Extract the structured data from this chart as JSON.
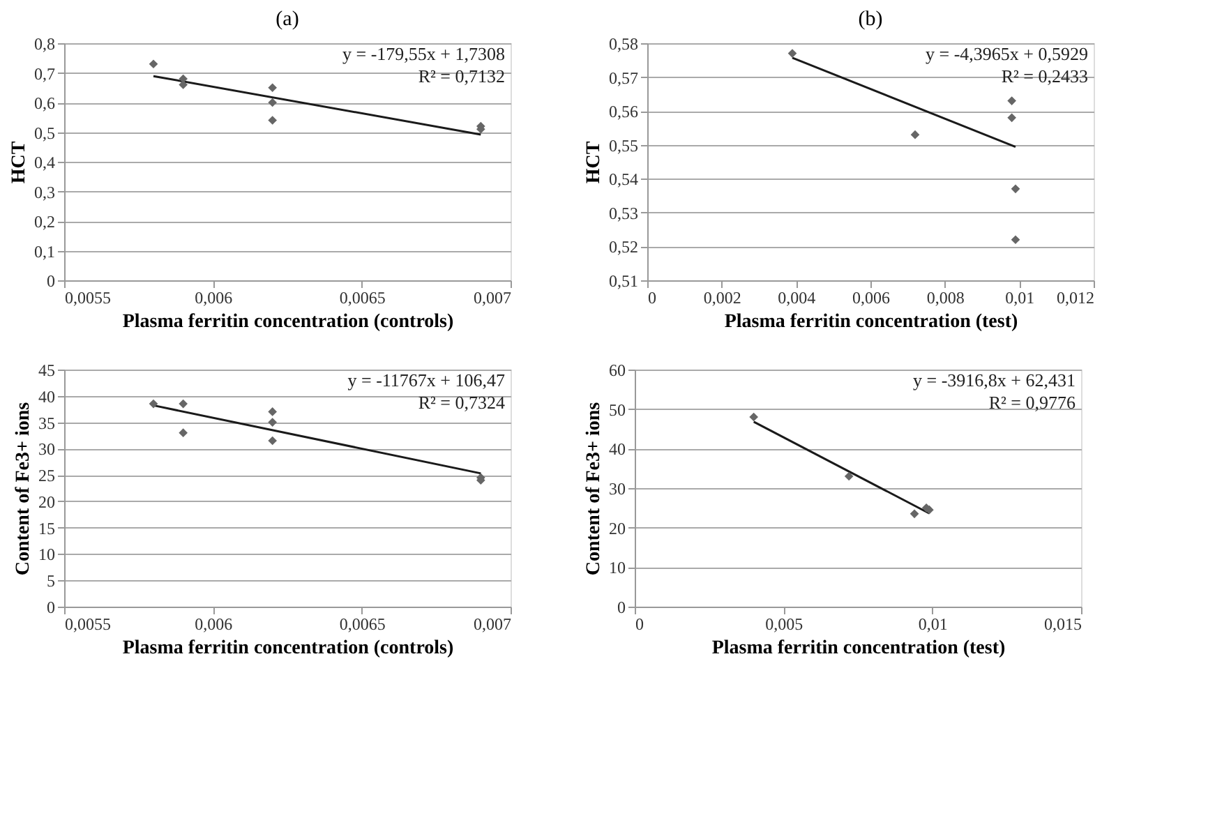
{
  "chart_data": [
    {
      "type": "scatter",
      "title": "(a)",
      "xlabel": "Plasma ferritin concentration (controls)",
      "ylabel": "HCT",
      "marker": "diamond",
      "grid": "y",
      "xlim": [
        0.0055,
        0.007
      ],
      "xticks": [
        {
          "value": 0.0055,
          "label": "0,0055"
        },
        {
          "value": 0.006,
          "label": "0,006"
        },
        {
          "value": 0.0065,
          "label": "0,0065"
        },
        {
          "value": 0.007,
          "label": "0,007"
        }
      ],
      "ylim": [
        0,
        0.8
      ],
      "yticks": [
        0,
        {
          "value": 0.1,
          "label": "0,1"
        },
        {
          "value": 0.2,
          "label": "0,2"
        },
        {
          "value": 0.3,
          "label": "0,3"
        },
        {
          "value": 0.4,
          "label": "0,4"
        },
        {
          "value": 0.5,
          "label": "0,5"
        },
        {
          "value": 0.6,
          "label": "0,6"
        },
        {
          "value": 0.7,
          "label": "0,7"
        },
        {
          "value": 0.8,
          "label": "0,8"
        }
      ],
      "annotations": [
        "y = -179,55x + 1,7308",
        "R² = 0,7132"
      ],
      "series": [
        {
          "color": "#666666",
          "x": [
            0.0058,
            0.0059,
            0.0059,
            0.0062,
            0.0062,
            0.0062,
            0.0069,
            0.0069
          ],
          "values": [
            0.73,
            0.68,
            0.66,
            0.65,
            0.6,
            0.54,
            0.52,
            0.51
          ]
        },
        {
          "type": "line",
          "marker": "none",
          "line_style": "solid",
          "color": "#1a1a1a",
          "x": [
            0.0058,
            0.0069
          ],
          "values": [
            0.689,
            0.492
          ]
        }
      ]
    },
    {
      "type": "scatter",
      "title": "(b)",
      "xlabel": "Plasma ferritin concentration (test)",
      "ylabel": "HCT",
      "marker": "diamond",
      "grid": "y",
      "xlim": [
        0,
        0.012
      ],
      "xticks": [
        0,
        {
          "value": 0.002,
          "label": "0,002"
        },
        {
          "value": 0.004,
          "label": "0,004"
        },
        {
          "value": 0.006,
          "label": "0,006"
        },
        {
          "value": 0.008,
          "label": "0,008"
        },
        {
          "value": 0.01,
          "label": "0,01"
        },
        {
          "value": 0.012,
          "label": "0,012"
        }
      ],
      "ylim": [
        0.51,
        0.58
      ],
      "yticks": [
        {
          "value": 0.51,
          "label": "0,51"
        },
        {
          "value": 0.52,
          "label": "0,52"
        },
        {
          "value": 0.53,
          "label": "0,53"
        },
        {
          "value": 0.54,
          "label": "0,54"
        },
        {
          "value": 0.55,
          "label": "0,55"
        },
        {
          "value": 0.56,
          "label": "0,56"
        },
        {
          "value": 0.57,
          "label": "0,57"
        },
        {
          "value": 0.58,
          "label": "0,58"
        }
      ],
      "annotations": [
        "y = -4,3965x + 0,5929",
        "R² = 0,2433"
      ],
      "series": [
        {
          "color": "#666666",
          "x": [
            0.0039,
            0.0072,
            0.0098,
            0.0098,
            0.0099,
            0.0099
          ],
          "values": [
            0.577,
            0.553,
            0.563,
            0.558,
            0.537,
            0.522
          ]
        },
        {
          "type": "line",
          "marker": "none",
          "line_style": "solid",
          "color": "#1a1a1a",
          "x": [
            0.0039,
            0.0099
          ],
          "values": [
            0.5757,
            0.5494
          ]
        }
      ]
    },
    {
      "type": "scatter",
      "xlabel": "Plasma ferritin concentration (controls)",
      "ylabel": "Content of Fe3+ ions",
      "marker": "diamond",
      "grid": "y",
      "xlim": [
        0.0055,
        0.007
      ],
      "xticks": [
        {
          "value": 0.0055,
          "label": "0,0055"
        },
        {
          "value": 0.006,
          "label": "0,006"
        },
        {
          "value": 0.0065,
          "label": "0,0065"
        },
        {
          "value": 0.007,
          "label": "0,007"
        }
      ],
      "ylim": [
        0,
        45
      ],
      "yticks": [
        0,
        5,
        10,
        15,
        20,
        25,
        30,
        35,
        40,
        45
      ],
      "annotations": [
        "y = -11767x + 106,47",
        "R² = 0,7324"
      ],
      "series": [
        {
          "color": "#666666",
          "x": [
            0.0058,
            0.0059,
            0.0059,
            0.0062,
            0.0062,
            0.0062,
            0.0069,
            0.0069
          ],
          "values": [
            38.5,
            38.5,
            33,
            37,
            35,
            31.5,
            24.5,
            24
          ]
        },
        {
          "type": "line",
          "marker": "none",
          "line_style": "solid",
          "color": "#1a1a1a",
          "x": [
            0.0058,
            0.0069
          ],
          "values": [
            38.2,
            25.3
          ]
        }
      ]
    },
    {
      "type": "scatter",
      "xlabel": "Plasma ferritin concentration (test)",
      "ylabel": "Content of Fe3+ ions",
      "marker": "diamond",
      "grid": "y",
      "xlim": [
        0,
        0.015
      ],
      "xticks": [
        0,
        {
          "value": 0.005,
          "label": "0,005"
        },
        {
          "value": 0.01,
          "label": "0,01"
        },
        {
          "value": 0.015,
          "label": "0,015"
        }
      ],
      "ylim": [
        0,
        60
      ],
      "yticks": [
        0,
        10,
        20,
        30,
        40,
        50,
        60
      ],
      "annotations": [
        "y = -3916,8x + 62,431",
        "R² = 0,9776"
      ],
      "series": [
        {
          "color": "#666666",
          "x": [
            0.004,
            0.0072,
            0.0094,
            0.0098,
            0.0099
          ],
          "values": [
            48,
            33,
            23.5,
            25,
            24.5
          ]
        },
        {
          "type": "line",
          "marker": "none",
          "line_style": "solid",
          "color": "#1a1a1a",
          "x": [
            0.004,
            0.0099
          ],
          "values": [
            46.8,
            23.6
          ]
        }
      ]
    }
  ]
}
